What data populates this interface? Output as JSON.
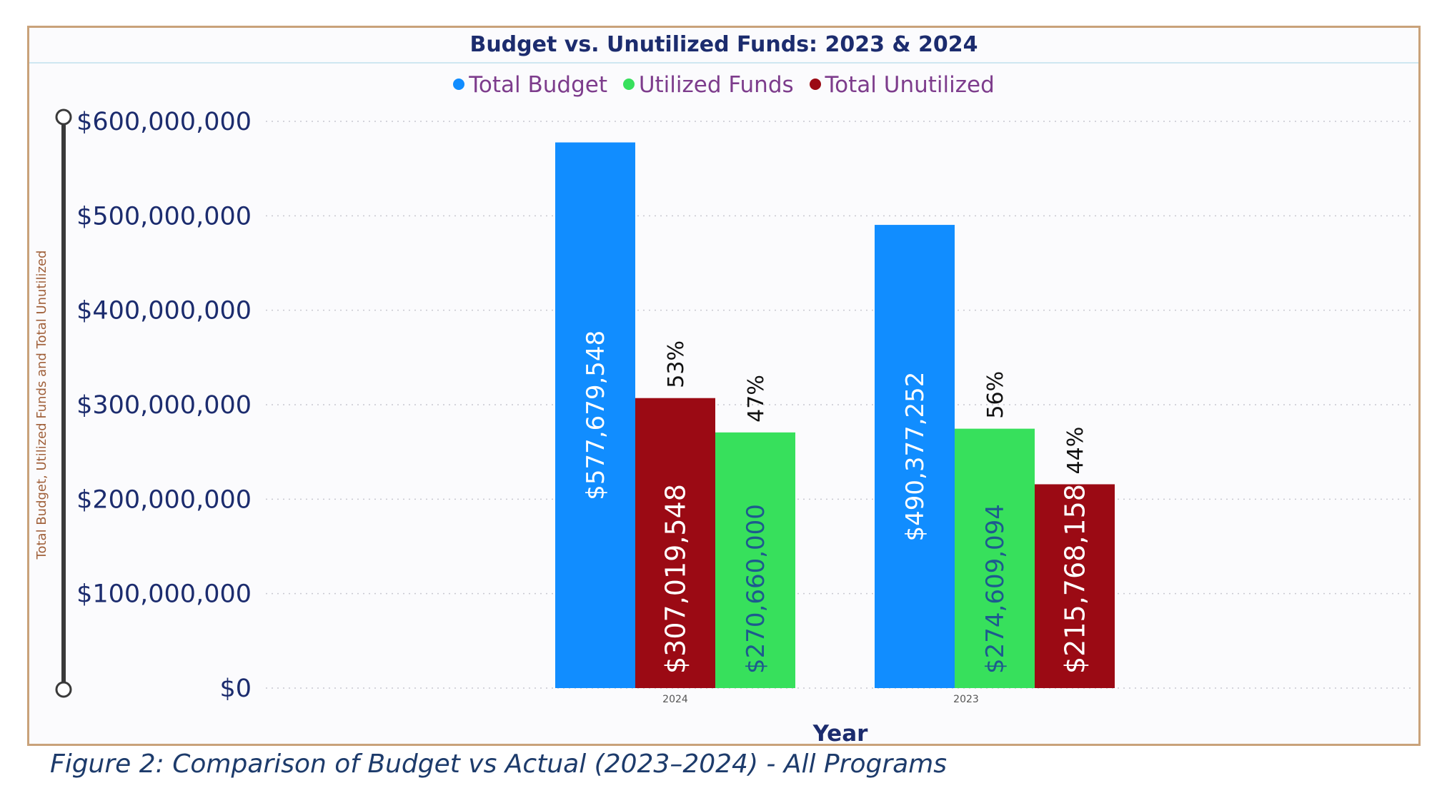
{
  "chart_data": {
    "type": "bar",
    "title": "Budget vs. Unutilized Funds: 2023 & 2024",
    "xlabel": "Year",
    "ylabel": "Total Budget, Utilized Funds and Total Unutilized",
    "ylim": [
      0,
      600000000
    ],
    "yticks": [
      "$0",
      "$100,000,000",
      "$200,000,000",
      "$300,000,000",
      "$400,000,000",
      "$500,000,000",
      "$600,000,000"
    ],
    "grid": true,
    "legend_position": "top-center",
    "legend": [
      {
        "name": "Total Budget",
        "color": "#118dff"
      },
      {
        "name": "Utilized Funds",
        "color": "#37e05c"
      },
      {
        "name": "Total Unutilized",
        "color": "#9b0a14"
      }
    ],
    "groups": [
      {
        "category": "2024",
        "bars": [
          {
            "series": "Total Budget",
            "value": 577679548,
            "label": "$577,679,548",
            "color": "#118dff",
            "pct": ""
          },
          {
            "series": "Total Unutilized",
            "value": 307019548,
            "label": "$307,019,548",
            "color": "#9b0a14",
            "pct": "53%"
          },
          {
            "series": "Utilized Funds",
            "value": 270660000,
            "label": "$270,660,000",
            "color": "#37e05c",
            "pct": "47%"
          }
        ]
      },
      {
        "category": "2023",
        "bars": [
          {
            "series": "Total Budget",
            "value": 490377252,
            "label": "$490,377,252",
            "color": "#118dff",
            "pct": ""
          },
          {
            "series": "Utilized Funds",
            "value": 274609094,
            "label": "$274,609,094",
            "color": "#37e05c",
            "pct": "56%"
          },
          {
            "series": "Total Unutilized",
            "value": 215768158,
            "label": "$215,768,158",
            "color": "#9b0a14",
            "pct": "44%"
          }
        ]
      }
    ]
  },
  "caption": "Figure 2: Comparison of Budget vs Actual (2023–2024) - All Programs"
}
